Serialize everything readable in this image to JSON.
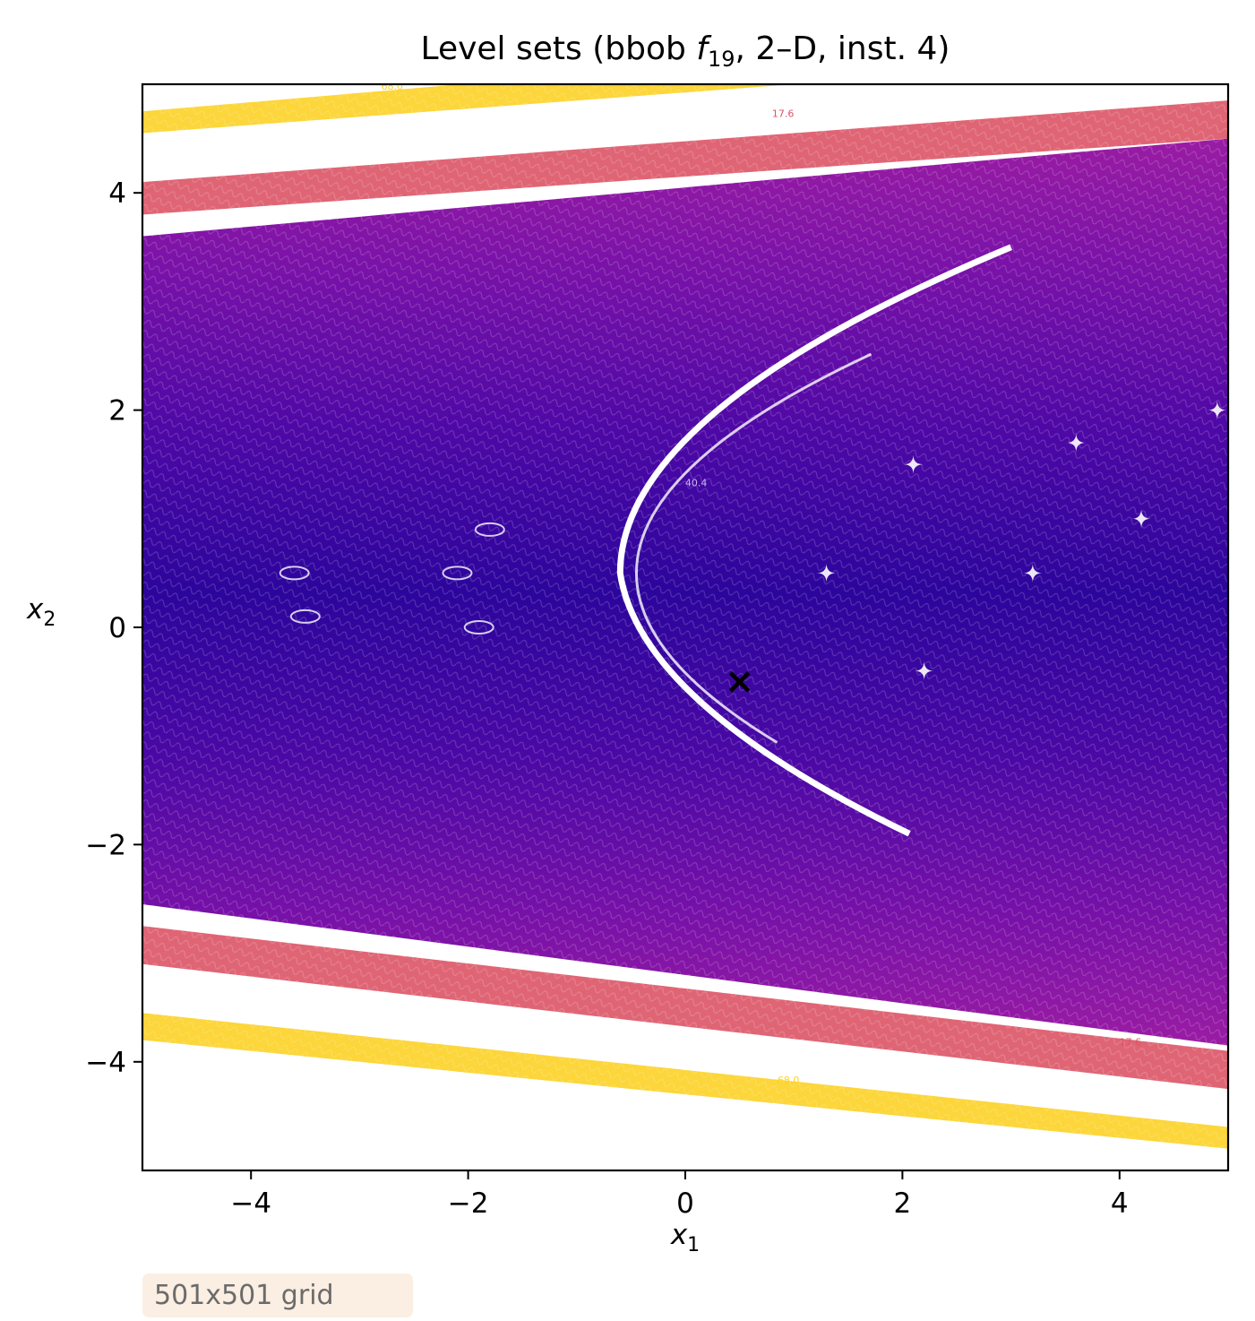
{
  "chart_data": {
    "type": "contour",
    "title_prefix": "Level sets (bbob ",
    "title_func": "f",
    "title_sub": "19",
    "title_suffix": ", 2–D, inst. 4)",
    "xlabel": "x",
    "xlabel_sub": "1",
    "ylabel": "x",
    "ylabel_sub": "2",
    "xlim": [
      -5,
      5
    ],
    "ylim": [
      -5,
      5
    ],
    "xticks": [
      -4,
      -2,
      0,
      2,
      4
    ],
    "yticks": [
      -4,
      -2,
      0,
      2,
      4
    ],
    "xtick_labels": [
      "−4",
      "−2",
      "0",
      "2",
      "4"
    ],
    "ytick_labels": [
      "−4",
      "−2",
      "0",
      "2",
      "4"
    ],
    "colormap": "plasma",
    "contour_level_labels_visible": [
      "68.0",
      "17.6",
      "40.4"
    ],
    "optimum_marker": {
      "symbol": "×",
      "x": 0.5,
      "y": -0.5,
      "color": "#000000"
    },
    "outer_band_colors": {
      "low": "#2a07a0",
      "mid": "#8a1aa6",
      "high": "#dc5466",
      "top": "#fcd225"
    },
    "grid": false,
    "annotation": "501x501 grid"
  }
}
